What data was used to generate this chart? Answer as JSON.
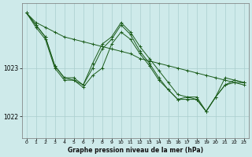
{
  "background_color": "#ceeaea",
  "grid_color": "#aacece",
  "line_color": "#1a5c1a",
  "title": "Graphe pression niveau de la mer (hPa)",
  "xlim": [
    -0.5,
    23.5
  ],
  "ylim": [
    1021.55,
    1024.35
  ],
  "yticks": [
    1022,
    1023
  ],
  "xticks": [
    0,
    1,
    2,
    3,
    4,
    5,
    6,
    7,
    8,
    9,
    10,
    11,
    12,
    13,
    14,
    15,
    16,
    17,
    18,
    19,
    20,
    21,
    22,
    23
  ],
  "series": [
    {
      "x": [
        0,
        1,
        2,
        3,
        4,
        5,
        6,
        7,
        8,
        9,
        10,
        11,
        12,
        13,
        14,
        15,
        16,
        17,
        18,
        19,
        20,
        21,
        22,
        23
      ],
      "y": [
        1024.15,
        1023.95,
        1023.85,
        1023.75,
        1023.65,
        1023.6,
        1023.55,
        1023.5,
        1023.45,
        1023.4,
        1023.35,
        1023.3,
        1023.2,
        1023.15,
        1023.1,
        1023.05,
        1023.0,
        1022.95,
        1022.9,
        1022.85,
        1022.8,
        1022.75,
        1022.7,
        1022.65
      ]
    },
    {
      "x": [
        0,
        1,
        2,
        3,
        4,
        5,
        6,
        7,
        8,
        9,
        10,
        11,
        12,
        13,
        14,
        15,
        16,
        17,
        18,
        19,
        20,
        21,
        22,
        23
      ],
      "y": [
        1024.15,
        1023.9,
        1023.65,
        1023.05,
        1022.8,
        1022.75,
        1022.65,
        1023.1,
        1023.5,
        1023.65,
        1023.95,
        1023.75,
        1023.45,
        1023.2,
        1022.95,
        1022.7,
        1022.45,
        1022.4,
        1022.35,
        1022.1,
        1022.4,
        1022.65,
        1022.75,
        1022.7
      ]
    },
    {
      "x": [
        0,
        1,
        2,
        3,
        4,
        5,
        6,
        7,
        8,
        9,
        10,
        11,
        12,
        13,
        14,
        15,
        16,
        17,
        18,
        19,
        20,
        21,
        22,
        23
      ],
      "y": [
        1024.15,
        1023.9,
        1023.65,
        1023.05,
        1022.8,
        1022.8,
        1022.65,
        1023.0,
        1023.4,
        1023.6,
        1023.9,
        1023.7,
        1023.35,
        1023.1,
        1022.8,
        1022.55,
        1022.35,
        1022.4,
        1022.4,
        1022.1,
        1022.4,
        1022.65,
        1022.7,
        1022.7
      ]
    },
    {
      "x": [
        0,
        1,
        2,
        3,
        4,
        5,
        6,
        7,
        8,
        9,
        10,
        11,
        12,
        13,
        14,
        15,
        16,
        17,
        18,
        19,
        20,
        21,
        22,
        23
      ],
      "y": [
        1024.15,
        1023.85,
        1023.6,
        1023.0,
        1022.75,
        1022.75,
        1022.6,
        1022.85,
        1023.0,
        1023.5,
        1023.75,
        1023.6,
        1023.3,
        1023.05,
        1022.75,
        1022.55,
        1022.35,
        1022.35,
        1022.35,
        1022.1,
        1022.4,
        1022.8,
        1022.75,
        1022.7
      ]
    }
  ]
}
